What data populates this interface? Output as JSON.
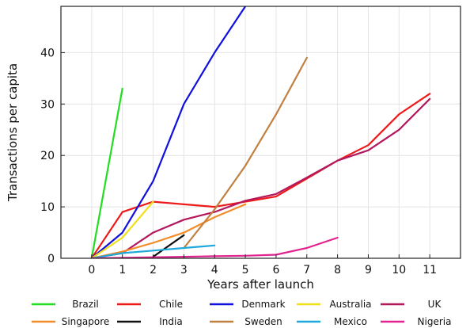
{
  "chart_data": {
    "type": "line",
    "xlabel": "Years after launch",
    "ylabel": "Transactions per capita",
    "xlim": [
      -1,
      12
    ],
    "ylim": [
      0,
      49
    ],
    "xticks": [
      0,
      1,
      2,
      3,
      4,
      5,
      6,
      7,
      8,
      9,
      10,
      11
    ],
    "yticks": [
      0,
      10,
      20,
      30,
      40
    ],
    "grid": true,
    "legend_position": "bottom",
    "series": [
      {
        "name": "Brazil",
        "color": "#22dd22",
        "x": [
          0,
          1
        ],
        "y": [
          0,
          33
        ]
      },
      {
        "name": "Chile",
        "color": "#ee1a1a",
        "x": [
          0,
          1,
          2,
          4,
          5,
          6,
          7,
          8,
          9,
          10,
          11
        ],
        "y": [
          0,
          9,
          11,
          10,
          11,
          12,
          15.5,
          19,
          22,
          28,
          32
        ]
      },
      {
        "name": "Denmark",
        "color": "#1111dd",
        "x": [
          0,
          1,
          2,
          3,
          4,
          5
        ],
        "y": [
          0,
          5,
          15,
          30,
          40,
          49
        ]
      },
      {
        "name": "Australia",
        "color": "#f0e01a",
        "x": [
          0,
          1,
          2
        ],
        "y": [
          0,
          4,
          11
        ]
      },
      {
        "name": "UK",
        "color": "#b3175c",
        "x": [
          0,
          1,
          2,
          3,
          4,
          5,
          6,
          7,
          8,
          9,
          10,
          11
        ],
        "y": [
          0,
          1,
          5,
          7.5,
          9,
          11.2,
          12.5,
          15.7,
          19,
          21,
          25,
          31
        ]
      },
      {
        "name": "Singapore",
        "color": "#f28c28",
        "x": [
          0,
          1,
          2,
          3,
          4,
          5
        ],
        "y": [
          0,
          1.3,
          3,
          5,
          8,
          10.5
        ]
      },
      {
        "name": "India",
        "color": "#111111",
        "x": [
          2,
          3
        ],
        "y": [
          0.3,
          4.5
        ]
      },
      {
        "name": "Sweden",
        "color": "#bf8040",
        "x": [
          3,
          4,
          5,
          6,
          7
        ],
        "y": [
          2,
          9.5,
          18,
          28,
          39
        ]
      },
      {
        "name": "Mexico",
        "color": "#1fa8dc",
        "x": [
          0,
          1,
          2,
          3,
          4
        ],
        "y": [
          0,
          1,
          1.5,
          2,
          2.5
        ]
      },
      {
        "name": "Nigeria",
        "color": "#e2238f",
        "x": [
          0,
          1,
          2,
          3,
          4,
          5,
          6,
          7,
          8
        ],
        "y": [
          0,
          0.1,
          0.2,
          0.3,
          0.4,
          0.5,
          0.7,
          2,
          4
        ]
      }
    ]
  }
}
